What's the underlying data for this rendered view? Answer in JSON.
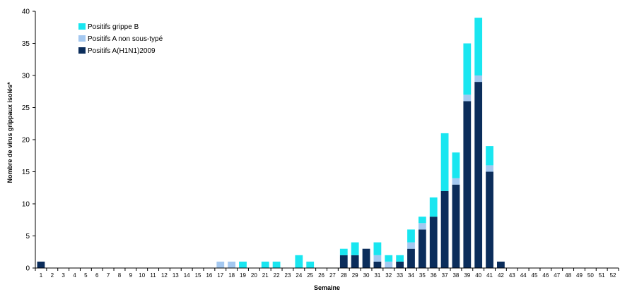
{
  "chart_data": {
    "type": "bar",
    "stacked": true,
    "xlabel": "Semaine",
    "ylabel": "Nombre de virus grippaux isolés*",
    "ylim": [
      0,
      40
    ],
    "yticks": [
      0,
      5,
      10,
      15,
      20,
      25,
      30,
      35,
      40
    ],
    "grid": false,
    "legend_position": "top-left",
    "categories": [
      "1",
      "2",
      "3",
      "4",
      "5",
      "6",
      "7",
      "8",
      "9",
      "10",
      "11",
      "12",
      "13",
      "14",
      "15",
      "16",
      "17",
      "18",
      "19",
      "20",
      "21",
      "22",
      "23",
      "24",
      "25",
      "26",
      "27",
      "28",
      "29",
      "30",
      "31",
      "32",
      "33",
      "34",
      "35",
      "36",
      "37",
      "38",
      "39",
      "40",
      "41",
      "42",
      "43",
      "44",
      "45",
      "46",
      "47",
      "48",
      "49",
      "50",
      "51",
      "52"
    ],
    "series": [
      {
        "name": "Positifs A(H1N1)2009",
        "color": "#0b2d5b",
        "values": [
          1,
          0,
          0,
          0,
          0,
          0,
          0,
          0,
          0,
          0,
          0,
          0,
          0,
          0,
          0,
          0,
          0,
          0,
          0,
          0,
          0,
          0,
          0,
          0,
          0,
          0,
          0,
          2,
          2,
          3,
          1,
          0,
          1,
          3,
          6,
          8,
          12,
          13,
          26,
          29,
          15,
          1,
          0,
          0,
          0,
          0,
          0,
          0,
          0,
          0,
          0,
          0
        ]
      },
      {
        "name": "Positifs  A non sous-typé",
        "color": "#a4c8f0",
        "values": [
          0,
          0,
          0,
          0,
          0,
          0,
          0,
          0,
          0,
          0,
          0,
          0,
          0,
          0,
          0,
          0,
          1,
          1,
          0,
          0,
          0,
          0,
          0,
          0,
          0,
          0,
          0,
          0,
          0,
          0,
          1,
          1,
          0,
          1,
          1,
          0,
          0,
          1,
          1,
          1,
          1,
          0,
          0,
          0,
          0,
          0,
          0,
          0,
          0,
          0,
          0,
          0
        ]
      },
      {
        "name": "Positifs grippe B",
        "color": "#19e6f0",
        "values": [
          0,
          0,
          0,
          0,
          0,
          0,
          0,
          0,
          0,
          0,
          0,
          0,
          0,
          0,
          0,
          0,
          0,
          0,
          1,
          0,
          1,
          1,
          0,
          2,
          1,
          0,
          0,
          1,
          2,
          0,
          2,
          1,
          1,
          2,
          1,
          3,
          9,
          4,
          8,
          9,
          3,
          0,
          0,
          0,
          0,
          0,
          0,
          0,
          0,
          0,
          0,
          0
        ]
      }
    ]
  }
}
